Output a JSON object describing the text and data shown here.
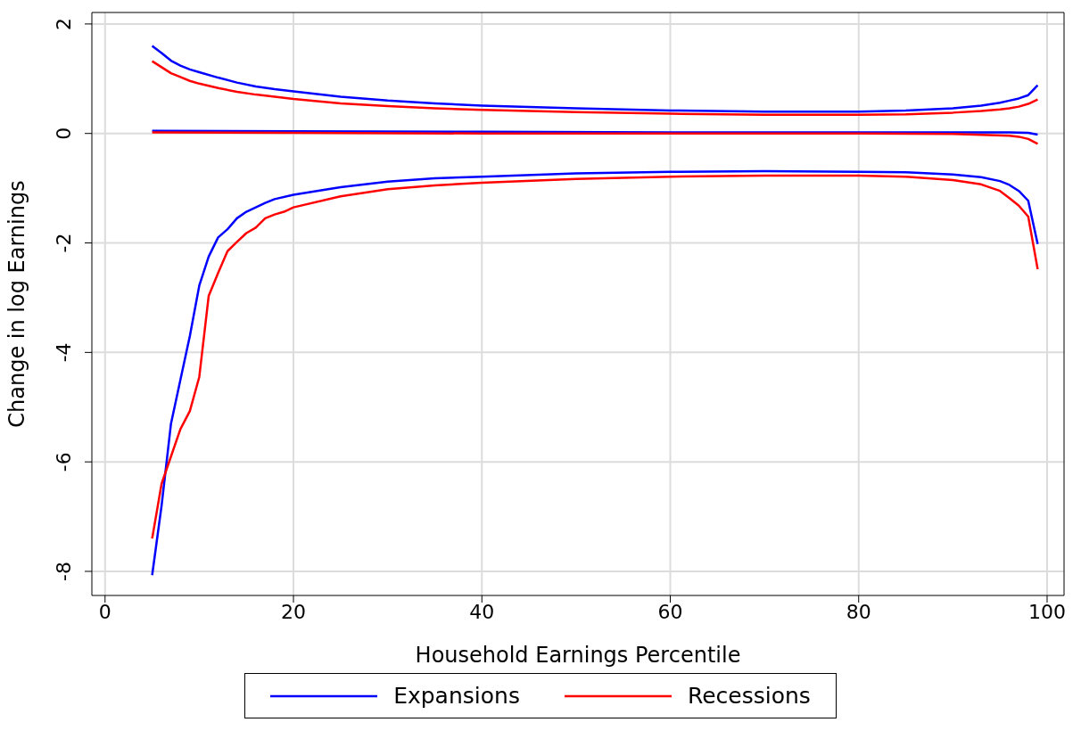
{
  "chart_data": {
    "type": "line",
    "xlabel": "Household Earnings Percentile",
    "ylabel": "Change in log Earnings",
    "xlim": [
      -1.4,
      101.8
    ],
    "ylim": [
      -8.44,
      2.21
    ],
    "xticks": [
      0,
      20,
      40,
      60,
      80,
      100
    ],
    "yticks": [
      -8,
      -6,
      -4,
      -2,
      0,
      2
    ],
    "grid": true,
    "legend": "bottom",
    "marker": "none",
    "line_style": "solid",
    "series": [
      {
        "name": "Expansions",
        "color": "#0000ff",
        "x": [
          5,
          6,
          7,
          8,
          9,
          10,
          12,
          14,
          16,
          18,
          20,
          25,
          30,
          35,
          40,
          50,
          60,
          70,
          80,
          85,
          90,
          93,
          95,
          96,
          97,
          98,
          99
        ],
        "values": [
          1.6,
          1.47,
          1.33,
          1.24,
          1.17,
          1.12,
          1.02,
          0.93,
          0.86,
          0.81,
          0.77,
          0.67,
          0.6,
          0.55,
          0.51,
          0.46,
          0.42,
          0.4,
          0.4,
          0.42,
          0.46,
          0.51,
          0.56,
          0.6,
          0.64,
          0.7,
          0.88
        ]
      },
      {
        "name": "Recessions",
        "color": "#ff0000",
        "x": [
          5,
          6,
          7,
          8,
          9,
          10,
          12,
          14,
          16,
          18,
          20,
          25,
          30,
          35,
          40,
          50,
          60,
          70,
          80,
          85,
          90,
          93,
          95,
          96,
          97,
          98,
          99
        ],
        "values": [
          1.32,
          1.21,
          1.1,
          1.03,
          0.96,
          0.91,
          0.83,
          0.76,
          0.71,
          0.67,
          0.63,
          0.55,
          0.5,
          0.46,
          0.43,
          0.39,
          0.36,
          0.34,
          0.34,
          0.35,
          0.38,
          0.41,
          0.44,
          0.46,
          0.49,
          0.54,
          0.62
        ]
      },
      {
        "color": "#0000ff",
        "x": [
          5,
          20,
          40,
          60,
          80,
          96,
          98,
          99
        ],
        "values": [
          0.05,
          0.04,
          0.03,
          0.02,
          0.02,
          0.02,
          0.01,
          -0.02
        ]
      },
      {
        "color": "#ff0000",
        "x": [
          5,
          20,
          40,
          60,
          80,
          90,
          96,
          97,
          98,
          99
        ],
        "values": [
          0.02,
          0.01,
          0,
          0,
          0,
          -0.01,
          -0.04,
          -0.06,
          -0.1,
          -0.19
        ]
      },
      {
        "color": "#0000ff",
        "x": [
          5,
          6,
          7,
          8,
          9,
          10,
          11,
          12,
          13,
          14,
          15,
          16,
          17,
          18,
          20,
          25,
          30,
          35,
          40,
          50,
          60,
          70,
          80,
          85,
          90,
          93,
          95,
          96,
          97,
          98,
          99
        ],
        "values": [
          -8.07,
          -6.8,
          -5.3,
          -4.5,
          -3.7,
          -2.78,
          -2.25,
          -1.9,
          -1.75,
          -1.55,
          -1.43,
          -1.35,
          -1.27,
          -1.2,
          -1.12,
          -0.98,
          -0.88,
          -0.82,
          -0.79,
          -0.73,
          -0.7,
          -0.69,
          -0.7,
          -0.71,
          -0.75,
          -0.8,
          -0.87,
          -0.94,
          -1.05,
          -1.23,
          -2.02
        ]
      },
      {
        "color": "#ff0000",
        "x": [
          5,
          6,
          7,
          8,
          9,
          10,
          11,
          12,
          13,
          14,
          15,
          16,
          17,
          18,
          19,
          20,
          25,
          30,
          35,
          40,
          50,
          60,
          70,
          80,
          85,
          90,
          93,
          95,
          96,
          97,
          98,
          99
        ],
        "values": [
          -7.4,
          -6.4,
          -5.9,
          -5.4,
          -5.07,
          -4.45,
          -2.97,
          -2.55,
          -2.15,
          -1.98,
          -1.82,
          -1.72,
          -1.55,
          -1.48,
          -1.43,
          -1.35,
          -1.15,
          -1.02,
          -0.95,
          -0.9,
          -0.83,
          -0.79,
          -0.77,
          -0.77,
          -0.79,
          -0.85,
          -0.93,
          -1.05,
          -1.18,
          -1.32,
          -1.52,
          -2.48
        ]
      }
    ]
  }
}
